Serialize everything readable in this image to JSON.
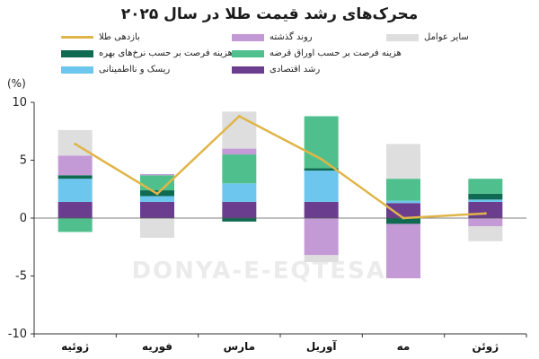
{
  "title": "محرک‌های رشد قیمت طلا در سال ۲۰۲۵",
  "unit": "(%)",
  "watermark": "DONYA-E-EQTESAD",
  "legend": [
    {
      "key": "gold_return",
      "label": "بازدهی طلا",
      "kind": "line",
      "color": "#e0b548"
    },
    {
      "key": "momentum",
      "label": "روند گذشته",
      "kind": "bar",
      "color": "#c39ad6"
    },
    {
      "key": "other",
      "label": "سایر عوامل",
      "kind": "bar",
      "color": "#dedede"
    },
    {
      "key": "rates",
      "label": "هزینه فرصت بر حسب نرخ‌های بهره",
      "kind": "bar",
      "color": "#106a52"
    },
    {
      "key": "bonds",
      "label": "هزینه فرصت بر حسب اوراق قرضه",
      "kind": "bar",
      "color": "#4fc08d"
    },
    {
      "key": "risk",
      "label": "ریسک و نااطمینانی",
      "kind": "bar",
      "color": "#6cc6ee"
    },
    {
      "key": "growth",
      "label": "رشد اقتصادی",
      "kind": "bar",
      "color": "#6a3d8f"
    }
  ],
  "chart_data": {
    "type": "bar",
    "stacked": true,
    "title": "محرک‌های رشد قیمت طلا در سال ۲۰۲۵",
    "ylabel": "(%)",
    "ylim": [
      -10,
      10
    ],
    "yticks": [
      10,
      5,
      0,
      -5,
      -10
    ],
    "grid": false,
    "categories": [
      "ژوئیه",
      "فوریه",
      "مارس",
      "آوریل",
      "مه",
      "ژوئن"
    ],
    "stack_order": [
      "growth",
      "risk",
      "rates",
      "bonds",
      "momentum",
      "other"
    ],
    "series": [
      {
        "key": "growth",
        "name": "رشد اقتصادی",
        "color": "#6a3d8f",
        "values": [
          1.4,
          1.4,
          1.4,
          1.4,
          1.3,
          1.4
        ]
      },
      {
        "key": "risk",
        "name": "ریسک و نااطمینانی",
        "color": "#6cc6ee",
        "values": [
          2.0,
          0.5,
          1.6,
          2.7,
          0.2,
          0.2
        ]
      },
      {
        "key": "rates",
        "name": "هزینه فرصت بر حسب نرخ‌های بهره",
        "color": "#106a52",
        "values": [
          0.3,
          0.5,
          -0.3,
          0.2,
          -0.5,
          0.5
        ]
      },
      {
        "key": "bonds",
        "name": "هزینه فرصت بر حسب اوراق قرضه",
        "color": "#4fc08d",
        "values": [
          -1.2,
          1.3,
          2.5,
          4.5,
          1.9,
          1.3
        ]
      },
      {
        "key": "momentum",
        "name": "روند گذشته",
        "color": "#c39ad6",
        "values": [
          1.7,
          0.1,
          0.5,
          -3.2,
          -4.7,
          -0.7
        ]
      },
      {
        "key": "other",
        "name": "سایر عوامل",
        "color": "#dedede",
        "values": [
          2.2,
          -1.7,
          3.2,
          -0.6,
          3.0,
          -1.3
        ]
      }
    ],
    "line": {
      "key": "gold_return",
      "name": "بازدهی طلا",
      "color": "#e0b548",
      "values": [
        6.4,
        2.1,
        8.8,
        5.1,
        0.0,
        0.4
      ]
    }
  }
}
